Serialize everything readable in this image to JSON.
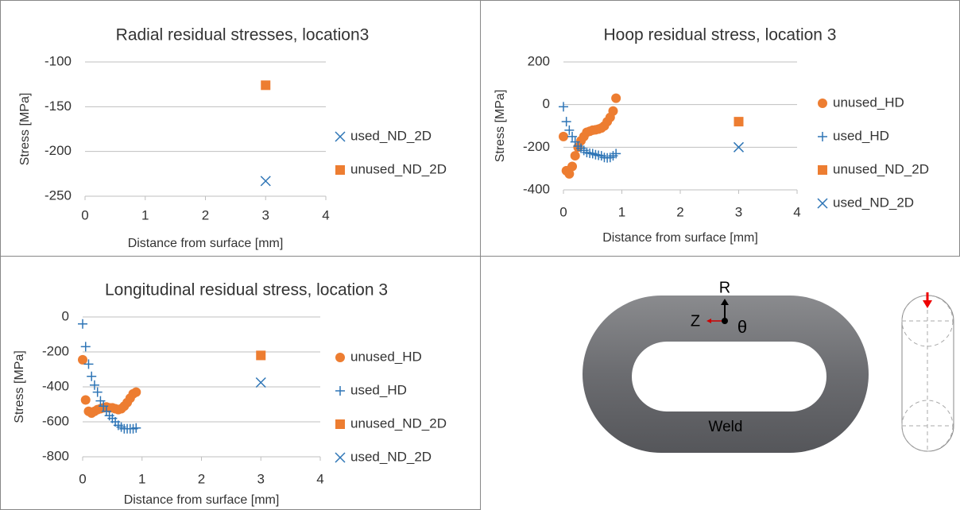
{
  "chart_data": [
    {
      "type": "scatter",
      "title": "Radial residual stresses, location3",
      "xlabel": "Distance from surface [mm]",
      "ylabel": "Stress [MPa]",
      "xlim": [
        0,
        4
      ],
      "xticks": [
        0,
        1,
        2,
        3,
        4
      ],
      "ylim": [
        -250,
        -100
      ],
      "yticks": [
        -100,
        -150,
        -200,
        -250
      ],
      "grid": true,
      "legend": "right",
      "series": [
        {
          "name": "used_ND_2D",
          "color": "#2e75b6",
          "marker": "x",
          "x": [
            3
          ],
          "values": [
            -233
          ]
        },
        {
          "name": "unused_ND_2D",
          "color": "#ed7d31",
          "marker": "square",
          "x": [
            3
          ],
          "values": [
            -126
          ]
        }
      ]
    },
    {
      "type": "scatter",
      "title": "Hoop residual stress, location 3",
      "xlabel": "Distance from surface [mm]",
      "ylabel": "Stress [MPa]",
      "xlim": [
        0,
        4
      ],
      "xticks": [
        0,
        1,
        2,
        3,
        4
      ],
      "ylim": [
        -400,
        200
      ],
      "yticks": [
        200,
        0,
        -200,
        -400
      ],
      "grid": true,
      "legend": "right",
      "series": [
        {
          "name": "unused_HD",
          "color": "#ed7d31",
          "marker": "circle",
          "x": [
            0,
            0.05,
            0.1,
            0.15,
            0.2,
            0.25,
            0.3,
            0.35,
            0.4,
            0.45,
            0.5,
            0.55,
            0.6,
            0.65,
            0.7,
            0.75,
            0.8,
            0.85,
            0.9
          ],
          "values": [
            -150,
            -310,
            -325,
            -290,
            -240,
            -200,
            -170,
            -150,
            -130,
            -125,
            -120,
            -118,
            -115,
            -110,
            -100,
            -80,
            -60,
            -30,
            30
          ]
        },
        {
          "name": "used_HD",
          "color": "#2e75b6",
          "marker": "plus",
          "x": [
            0,
            0.05,
            0.1,
            0.15,
            0.2,
            0.25,
            0.3,
            0.35,
            0.4,
            0.45,
            0.5,
            0.55,
            0.6,
            0.65,
            0.7,
            0.75,
            0.8,
            0.85,
            0.9
          ],
          "values": [
            -10,
            -80,
            -120,
            -150,
            -175,
            -195,
            -205,
            -215,
            -225,
            -228,
            -230,
            -235,
            -238,
            -240,
            -248,
            -250,
            -248,
            -240,
            -230
          ]
        },
        {
          "name": "unused_ND_2D",
          "color": "#ed7d31",
          "marker": "square",
          "x": [
            3
          ],
          "values": [
            -80
          ]
        },
        {
          "name": "used_ND_2D",
          "color": "#2e75b6",
          "marker": "x",
          "x": [
            3
          ],
          "values": [
            -200
          ]
        }
      ]
    },
    {
      "type": "scatter",
      "title": "Longitudinal residual stress, location 3",
      "xlabel": "Distance from surface [mm]",
      "ylabel": "Stress [MPa]",
      "xlim": [
        0,
        4
      ],
      "xticks": [
        0,
        1,
        2,
        3,
        4
      ],
      "ylim": [
        -800,
        0
      ],
      "yticks": [
        0,
        -200,
        -400,
        -600,
        -800
      ],
      "grid": true,
      "legend": "right",
      "series": [
        {
          "name": "unused_HD",
          "color": "#ed7d31",
          "marker": "circle",
          "x": [
            0,
            0.05,
            0.1,
            0.15,
            0.2,
            0.25,
            0.3,
            0.35,
            0.4,
            0.45,
            0.5,
            0.55,
            0.6,
            0.65,
            0.7,
            0.75,
            0.8,
            0.85,
            0.9
          ],
          "values": [
            -245,
            -475,
            -540,
            -550,
            -540,
            -530,
            -525,
            -520,
            -515,
            -520,
            -520,
            -525,
            -530,
            -525,
            -510,
            -490,
            -465,
            -440,
            -430
          ]
        },
        {
          "name": "used_HD",
          "color": "#2e75b6",
          "marker": "plus",
          "x": [
            0,
            0.05,
            0.1,
            0.15,
            0.2,
            0.25,
            0.3,
            0.35,
            0.4,
            0.45,
            0.5,
            0.55,
            0.6,
            0.65,
            0.7,
            0.75,
            0.8,
            0.85,
            0.9
          ],
          "values": [
            -40,
            -170,
            -270,
            -340,
            -390,
            -430,
            -480,
            -510,
            -540,
            -565,
            -580,
            -600,
            -620,
            -630,
            -640,
            -640,
            -640,
            -640,
            -635
          ]
        },
        {
          "name": "unused_ND_2D",
          "color": "#ed7d31",
          "marker": "square",
          "x": [
            3
          ],
          "values": [
            -220
          ]
        },
        {
          "name": "used_ND_2D",
          "color": "#2e75b6",
          "marker": "x",
          "x": [
            3
          ],
          "values": [
            -375
          ]
        }
      ]
    }
  ],
  "diagram": {
    "axis_r": "R",
    "axis_z": "Z",
    "axis_theta": "θ",
    "weld": "Weld"
  }
}
